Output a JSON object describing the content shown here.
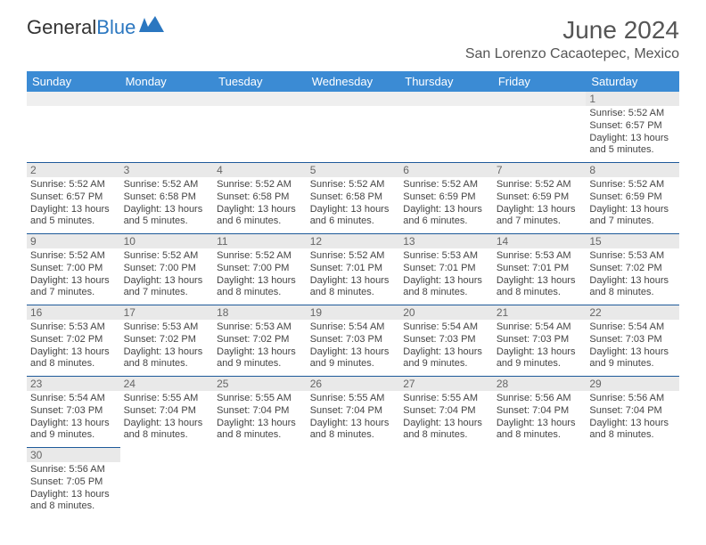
{
  "logo": {
    "text1": "General",
    "text2": "Blue"
  },
  "title": "June 2024",
  "location": "San Lorenzo Cacaotepec, Mexico",
  "colors": {
    "header_bg": "#3b8bd4",
    "header_text": "#ffffff",
    "cell_border": "#1e5a9a",
    "daynum_bg": "#e9e9e9",
    "text": "#444444",
    "logo_accent": "#2b77c0"
  },
  "days_of_week": [
    "Sunday",
    "Monday",
    "Tuesday",
    "Wednesday",
    "Thursday",
    "Friday",
    "Saturday"
  ],
  "labels": {
    "sunrise": "Sunrise:",
    "sunset": "Sunset:",
    "daylight": "Daylight:"
  },
  "weeks": [
    [
      null,
      null,
      null,
      null,
      null,
      null,
      {
        "n": "1",
        "sunrise": "5:52 AM",
        "sunset": "6:57 PM",
        "daylight": "13 hours and 5 minutes."
      }
    ],
    [
      {
        "n": "2",
        "sunrise": "5:52 AM",
        "sunset": "6:57 PM",
        "daylight": "13 hours and 5 minutes."
      },
      {
        "n": "3",
        "sunrise": "5:52 AM",
        "sunset": "6:58 PM",
        "daylight": "13 hours and 5 minutes."
      },
      {
        "n": "4",
        "sunrise": "5:52 AM",
        "sunset": "6:58 PM",
        "daylight": "13 hours and 6 minutes."
      },
      {
        "n": "5",
        "sunrise": "5:52 AM",
        "sunset": "6:58 PM",
        "daylight": "13 hours and 6 minutes."
      },
      {
        "n": "6",
        "sunrise": "5:52 AM",
        "sunset": "6:59 PM",
        "daylight": "13 hours and 6 minutes."
      },
      {
        "n": "7",
        "sunrise": "5:52 AM",
        "sunset": "6:59 PM",
        "daylight": "13 hours and 7 minutes."
      },
      {
        "n": "8",
        "sunrise": "5:52 AM",
        "sunset": "6:59 PM",
        "daylight": "13 hours and 7 minutes."
      }
    ],
    [
      {
        "n": "9",
        "sunrise": "5:52 AM",
        "sunset": "7:00 PM",
        "daylight": "13 hours and 7 minutes."
      },
      {
        "n": "10",
        "sunrise": "5:52 AM",
        "sunset": "7:00 PM",
        "daylight": "13 hours and 7 minutes."
      },
      {
        "n": "11",
        "sunrise": "5:52 AM",
        "sunset": "7:00 PM",
        "daylight": "13 hours and 8 minutes."
      },
      {
        "n": "12",
        "sunrise": "5:52 AM",
        "sunset": "7:01 PM",
        "daylight": "13 hours and 8 minutes."
      },
      {
        "n": "13",
        "sunrise": "5:53 AM",
        "sunset": "7:01 PM",
        "daylight": "13 hours and 8 minutes."
      },
      {
        "n": "14",
        "sunrise": "5:53 AM",
        "sunset": "7:01 PM",
        "daylight": "13 hours and 8 minutes."
      },
      {
        "n": "15",
        "sunrise": "5:53 AM",
        "sunset": "7:02 PM",
        "daylight": "13 hours and 8 minutes."
      }
    ],
    [
      {
        "n": "16",
        "sunrise": "5:53 AM",
        "sunset": "7:02 PM",
        "daylight": "13 hours and 8 minutes."
      },
      {
        "n": "17",
        "sunrise": "5:53 AM",
        "sunset": "7:02 PM",
        "daylight": "13 hours and 8 minutes."
      },
      {
        "n": "18",
        "sunrise": "5:53 AM",
        "sunset": "7:02 PM",
        "daylight": "13 hours and 9 minutes."
      },
      {
        "n": "19",
        "sunrise": "5:54 AM",
        "sunset": "7:03 PM",
        "daylight": "13 hours and 9 minutes."
      },
      {
        "n": "20",
        "sunrise": "5:54 AM",
        "sunset": "7:03 PM",
        "daylight": "13 hours and 9 minutes."
      },
      {
        "n": "21",
        "sunrise": "5:54 AM",
        "sunset": "7:03 PM",
        "daylight": "13 hours and 9 minutes."
      },
      {
        "n": "22",
        "sunrise": "5:54 AM",
        "sunset": "7:03 PM",
        "daylight": "13 hours and 9 minutes."
      }
    ],
    [
      {
        "n": "23",
        "sunrise": "5:54 AM",
        "sunset": "7:03 PM",
        "daylight": "13 hours and 9 minutes."
      },
      {
        "n": "24",
        "sunrise": "5:55 AM",
        "sunset": "7:04 PM",
        "daylight": "13 hours and 8 minutes."
      },
      {
        "n": "25",
        "sunrise": "5:55 AM",
        "sunset": "7:04 PM",
        "daylight": "13 hours and 8 minutes."
      },
      {
        "n": "26",
        "sunrise": "5:55 AM",
        "sunset": "7:04 PM",
        "daylight": "13 hours and 8 minutes."
      },
      {
        "n": "27",
        "sunrise": "5:55 AM",
        "sunset": "7:04 PM",
        "daylight": "13 hours and 8 minutes."
      },
      {
        "n": "28",
        "sunrise": "5:56 AM",
        "sunset": "7:04 PM",
        "daylight": "13 hours and 8 minutes."
      },
      {
        "n": "29",
        "sunrise": "5:56 AM",
        "sunset": "7:04 PM",
        "daylight": "13 hours and 8 minutes."
      }
    ],
    [
      {
        "n": "30",
        "sunrise": "5:56 AM",
        "sunset": "7:05 PM",
        "daylight": "13 hours and 8 minutes."
      },
      null,
      null,
      null,
      null,
      null,
      null
    ]
  ]
}
